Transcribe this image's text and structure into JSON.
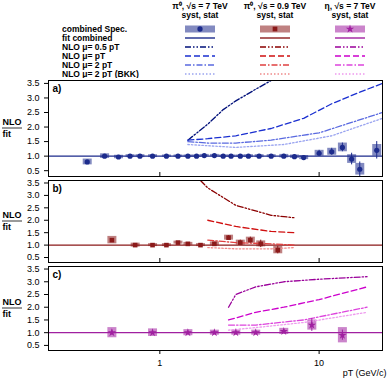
{
  "chart_data": [
    {
      "type": "scatter",
      "title": "π⁰, √s = 7 TeV",
      "subtitle": "syst, stat",
      "panel_label": "a)",
      "ylabel": [
        "NLO",
        "fit"
      ],
      "log": "x",
      "legend": "top",
      "xlim": [
        0.2,
        25
      ],
      "xticks": [
        1,
        10
      ],
      "ylim": [
        0.3,
        3.6
      ],
      "yticks": [
        0.5,
        {
          "value": 1,
          "label": "1.0"
        },
        1.5,
        {
          "value": 2,
          "label": "2.0"
        },
        2.5,
        {
          "value": 3,
          "label": "3.0"
        },
        3.5
      ],
      "series": [
        {
          "name": "combined Spec.",
          "type": "scatter",
          "marker": "circle",
          "color": "#1c2b8c",
          "x": [
            0.35,
            0.45,
            0.55,
            0.65,
            0.75,
            0.9,
            1.1,
            1.3,
            1.5,
            1.7,
            1.9,
            2.2,
            2.5,
            2.8,
            3.2,
            3.6,
            4.2,
            5,
            6,
            7,
            8,
            10,
            12,
            14,
            16,
            18,
            23
          ],
          "values": [
            0.8,
            1.0,
            0.97,
            1.0,
            1.0,
            1.0,
            1.0,
            1.0,
            1.0,
            1.0,
            1.02,
            1.02,
            1.0,
            1.0,
            1.0,
            1.0,
            1.0,
            1.0,
            1.0,
            0.98,
            0.95,
            1.1,
            1.15,
            1.3,
            0.9,
            0.55,
            1.2
          ],
          "syst": [
            0.1,
            0.08,
            0.06,
            0.05,
            0.05,
            0.05,
            0.04,
            0.04,
            0.04,
            0.04,
            0.04,
            0.04,
            0.04,
            0.04,
            0.04,
            0.05,
            0.05,
            0.05,
            0.06,
            0.06,
            0.07,
            0.1,
            0.12,
            0.15,
            0.15,
            0.2,
            0.2
          ],
          "stat": [
            0.03,
            0.02,
            0.02,
            0.02,
            0.02,
            0.02,
            0.02,
            0.02,
            0.02,
            0.02,
            0.02,
            0.02,
            0.02,
            0.02,
            0.02,
            0.02,
            0.03,
            0.03,
            0.04,
            0.05,
            0.06,
            0.1,
            0.12,
            0.15,
            0.2,
            0.25,
            0.3
          ]
        },
        {
          "name": "fit combined",
          "type": "line",
          "line_style": "solid",
          "color": "#1c2b8c",
          "x": [
            0.2,
            25
          ],
          "values": [
            1,
            1
          ]
        },
        {
          "name": "NLO μ= 0.5 pT",
          "type": "line",
          "line_style": "dashdotdot",
          "color": "#00107a",
          "x": [
            1.5,
            2,
            2.5,
            3,
            4,
            5
          ],
          "values": [
            1.55,
            2.1,
            2.6,
            2.9,
            3.3,
            3.6
          ]
        },
        {
          "name": "NLO μ= pT",
          "type": "line",
          "line_style": "dashed",
          "color": "#1a2fd0",
          "x": [
            1.5,
            2,
            3,
            5,
            8,
            12,
            18,
            25
          ],
          "values": [
            1.55,
            1.6,
            1.7,
            1.95,
            2.3,
            2.8,
            3.2,
            3.5
          ]
        },
        {
          "name": "NLO μ= 2 pT",
          "type": "line",
          "line_style": "dashdot",
          "color": "#5a6ae0",
          "x": [
            1.5,
            2,
            3,
            5,
            10,
            25
          ],
          "values": [
            1.5,
            1.45,
            1.45,
            1.55,
            1.8,
            2.5
          ]
        },
        {
          "name": "NLO μ= 2 pT (BKK)",
          "type": "line",
          "line_style": "dotted",
          "color": "#9aa4f0",
          "x": [
            1.5,
            3,
            6,
            12,
            25
          ],
          "values": [
            1.4,
            1.3,
            1.4,
            1.7,
            2.3
          ]
        }
      ]
    },
    {
      "type": "scatter",
      "title": "π⁰, √s = 0.9 TeV",
      "subtitle": "syst, stat",
      "panel_label": "b)",
      "ylabel": [
        "NLO",
        "fit"
      ],
      "log": "x",
      "xlim": [
        0.2,
        25
      ],
      "xticks": [
        1,
        10
      ],
      "ylim": [
        0.3,
        3.6
      ],
      "yticks": [
        0.5,
        {
          "value": 1,
          "label": "1.0"
        },
        1.5,
        {
          "value": 2,
          "label": "2.0"
        },
        2.5,
        {
          "value": 3,
          "label": "3.0"
        },
        3.5
      ],
      "series": [
        {
          "name": "combined Spec.",
          "type": "scatter",
          "marker": "square",
          "color": "#8b1a1a",
          "x": [
            0.5,
            0.7,
            0.9,
            1.1,
            1.3,
            1.5,
            1.8,
            2.2,
            2.7,
            3.2,
            3.7,
            4.3,
            5.5
          ],
          "values": [
            1.2,
            1.0,
            1.0,
            1.0,
            1.1,
            1.05,
            1.0,
            1.05,
            1.3,
            1.1,
            1.2,
            1.05,
            0.8
          ],
          "syst": [
            0.15,
            0.08,
            0.06,
            0.06,
            0.06,
            0.06,
            0.06,
            0.08,
            0.1,
            0.1,
            0.12,
            0.12,
            0.15
          ],
          "stat": [
            0.05,
            0.03,
            0.03,
            0.03,
            0.04,
            0.04,
            0.05,
            0.06,
            0.08,
            0.1,
            0.12,
            0.15,
            0.15
          ]
        },
        {
          "name": "fit combined",
          "type": "line",
          "line_style": "solid",
          "color": "#8b1a1a",
          "x": [
            0.2,
            25
          ],
          "values": [
            1,
            1
          ]
        },
        {
          "name": "NLO μ= 0.5 pT",
          "type": "line",
          "line_style": "dashdotdot",
          "color": "#8b0000",
          "x": [
            1.8,
            2,
            3,
            5,
            7
          ],
          "values": [
            3.6,
            3.3,
            2.6,
            2.2,
            2.1
          ]
        },
        {
          "name": "NLO μ= pT",
          "type": "line",
          "line_style": "dashed",
          "color": "#d01010",
          "x": [
            2,
            3,
            5,
            7
          ],
          "values": [
            2.0,
            1.75,
            1.55,
            1.5
          ]
        },
        {
          "name": "NLO μ= 2 pT",
          "type": "line",
          "line_style": "dashdot",
          "color": "#e04040",
          "x": [
            2,
            3,
            5,
            7
          ],
          "values": [
            1.2,
            1.1,
            1.05,
            1.0
          ]
        },
        {
          "name": "NLO μ= 2 pT (BKK)",
          "type": "line",
          "line_style": "dotted",
          "color": "#f08a8a",
          "x": [
            2,
            3,
            5,
            7
          ],
          "values": [
            0.9,
            0.85,
            0.85,
            0.9
          ]
        }
      ]
    },
    {
      "type": "scatter",
      "title": "η, √s = 7 TeV",
      "subtitle": "syst, stat",
      "panel_label": "c)",
      "ylabel": [
        "NLO",
        "fit"
      ],
      "xlabel": "pT (GeV/c)",
      "log": "x",
      "xlim": [
        0.2,
        25
      ],
      "xticks": [
        1,
        10
      ],
      "ylim": [
        0.3,
        3.6
      ],
      "yticks": [
        0.5,
        {
          "value": 1,
          "label": "1.0"
        },
        1.5,
        {
          "value": 2,
          "label": "2.0"
        },
        2.5,
        {
          "value": 3,
          "label": "3.0"
        },
        3.5
      ],
      "series": [
        {
          "name": "combined Spec.",
          "type": "scatter",
          "marker": "star",
          "color": "#a020a0",
          "x": [
            0.5,
            0.9,
            1.5,
            2.2,
            3,
            4,
            6,
            9,
            14
          ],
          "values": [
            1.0,
            1.0,
            1.0,
            1.0,
            1.0,
            1.0,
            1.05,
            1.3,
            0.9
          ],
          "syst": [
            0.2,
            0.15,
            0.12,
            0.1,
            0.1,
            0.1,
            0.12,
            0.2,
            0.3
          ],
          "stat": [
            0.1,
            0.05,
            0.04,
            0.04,
            0.04,
            0.05,
            0.08,
            0.25,
            0.2
          ]
        },
        {
          "name": "fit combined",
          "type": "line",
          "line_style": "solid",
          "color": "#a020a0",
          "x": [
            0.2,
            25
          ],
          "values": [
            1,
            1
          ]
        },
        {
          "name": "NLO μ= 0.5 pT",
          "type": "line",
          "line_style": "dashdotdot",
          "color": "#9a009a",
          "x": [
            2.7,
            3,
            4,
            6,
            10,
            20
          ],
          "values": [
            2.0,
            2.5,
            2.8,
            3.0,
            3.1,
            3.2
          ]
        },
        {
          "name": "NLO μ= pT",
          "type": "line",
          "line_style": "dashed",
          "color": "#cc00cc",
          "x": [
            2.7,
            4,
            6,
            10,
            20
          ],
          "values": [
            1.5,
            1.8,
            2.0,
            2.3,
            2.8
          ]
        },
        {
          "name": "NLO μ= 2 pT",
          "type": "line",
          "line_style": "dashdot",
          "color": "#dd44dd",
          "x": [
            2.7,
            4,
            8,
            20
          ],
          "values": [
            1.3,
            1.3,
            1.5,
            2.0
          ]
        },
        {
          "name": "NLO μ= 2 pT (BKK)",
          "type": "line",
          "line_style": "dotted",
          "color": "#ee99ee",
          "x": [
            2.7,
            4,
            8,
            20
          ],
          "values": [
            1.1,
            1.2,
            1.4,
            1.8
          ]
        }
      ]
    }
  ]
}
